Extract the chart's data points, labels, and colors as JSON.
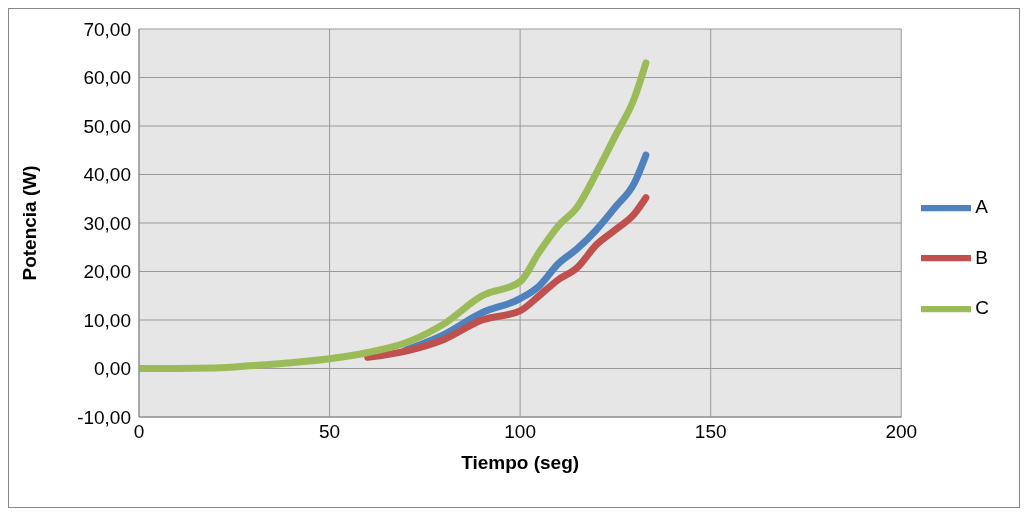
{
  "chart_data": {
    "type": "line",
    "xlabel": "Tiempo (seg)",
    "ylabel": "Potencia (W)",
    "x": [
      0,
      10,
      20,
      30,
      40,
      50,
      60,
      70,
      80,
      90,
      100,
      105,
      110,
      115,
      120,
      125,
      130,
      133
    ],
    "series": [
      {
        "name": "A",
        "color": "#4f81bd",
        "values": [
          null,
          null,
          null,
          null,
          null,
          null,
          null,
          3.8,
          7,
          11.5,
          14.4,
          17,
          21.6,
          24.7,
          28.6,
          33.3,
          38.3,
          44
        ]
      },
      {
        "name": "B",
        "color": "#c0504d",
        "values": [
          null,
          null,
          null,
          null,
          null,
          null,
          2.3,
          3.6,
          6,
          10,
          11.9,
          15,
          18.3,
          20.8,
          25.5,
          28.6,
          31.9,
          35.2
        ]
      },
      {
        "name": "C",
        "color": "#9bbb59",
        "values": [
          0,
          0,
          0.1,
          0.6,
          1.2,
          2,
          3.3,
          5.3,
          9.2,
          15,
          17.9,
          24,
          29.4,
          33.3,
          40.3,
          48,
          55.8,
          63
        ]
      }
    ],
    "xlim": [
      0,
      200
    ],
    "xticks": [
      0,
      50,
      100,
      150,
      200
    ],
    "ylim": [
      -10,
      70
    ],
    "yticks": [
      {
        "value": -10,
        "label": "-10,00"
      },
      {
        "value": 0,
        "label": "0,00"
      },
      {
        "value": 10,
        "label": "10,00"
      },
      {
        "value": 20,
        "label": "20,00"
      },
      {
        "value": 30,
        "label": "30,00"
      },
      {
        "value": 40,
        "label": "40,00"
      },
      {
        "value": 50,
        "label": "50,00"
      },
      {
        "value": 60,
        "label": "60,00"
      },
      {
        "value": 70,
        "label": "70,00"
      }
    ],
    "grid": true,
    "legend": "right",
    "marker": "none",
    "line_style": "solid"
  }
}
